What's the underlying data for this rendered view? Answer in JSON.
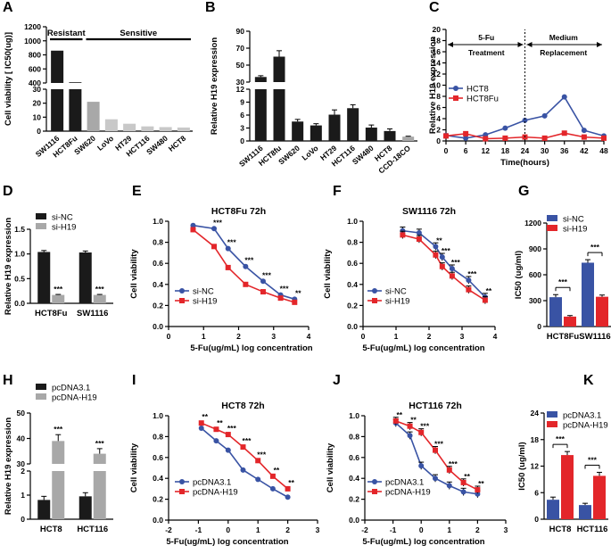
{
  "colors": {
    "blue": "#3953a4",
    "red": "#e3262a",
    "black": "#1a1a1a",
    "gray": "#a8a8a8",
    "light": "#c8c8c8"
  },
  "chart_data": [
    {
      "panel": "A",
      "type": "bar",
      "ylabel": "Cell viability [ IC50(ug)]",
      "categories": [
        "SW1116",
        "HCT8Fu",
        "SW620",
        "LoVo",
        "HT29",
        "HCT116",
        "SW480",
        "HCT8"
      ],
      "values": [
        860,
        410,
        21,
        8.5,
        5.3,
        3.4,
        2.9,
        2.6
      ],
      "groups": [
        {
          "label": "Resistant",
          "from": 0,
          "to": 1
        },
        {
          "label": "Sensitive",
          "from": 2,
          "to": 7
        }
      ],
      "y_lower_ticks": [
        "0",
        "10",
        "20",
        "30"
      ],
      "y_upper_ticks": [
        "400",
        "600",
        "800",
        "1000",
        "1200"
      ]
    },
    {
      "panel": "B",
      "type": "bar",
      "ylabel": "Relative H19 expression",
      "categories": [
        "SW1116",
        "HCT8fu",
        "SW620",
        "LoVo",
        "HT29",
        "HCT116",
        "SW480",
        "HCT8",
        "CCD-18CO"
      ],
      "values": [
        36,
        60,
        4.5,
        3.6,
        6.1,
        7.6,
        3.1,
        2.3,
        1
      ],
      "errors": [
        1.5,
        7,
        0.5,
        0.4,
        1.1,
        0.8,
        0.6,
        0.5,
        0.1
      ],
      "y_lower_ticks": [
        "0",
        "3",
        "6",
        "9",
        "12"
      ],
      "y_upper_ticks": [
        "30",
        "50",
        "70",
        "90"
      ]
    },
    {
      "panel": "C",
      "type": "line",
      "xlabel": "Time(hours)",
      "ylabel": "Relative H19 expression",
      "x": [
        0,
        6,
        12,
        18,
        24,
        30,
        36,
        42,
        48
      ],
      "xticks": [
        "0",
        "6",
        "12",
        "18",
        "24",
        "30",
        "36",
        "42",
        "48"
      ],
      "yticks": [
        "0",
        "2",
        "4",
        "6",
        "8",
        "10",
        "12",
        "14",
        "16",
        "18",
        "20"
      ],
      "xlim": [
        0,
        48
      ],
      "ylim": [
        0,
        20
      ],
      "series": [
        {
          "name": "HCT8",
          "values": [
            1.0,
            0.5,
            1.1,
            2.3,
            3.7,
            4.5,
            7.9,
            1.9,
            0.9
          ]
        },
        {
          "name": "HCT8Fu",
          "values": [
            0.9,
            1.3,
            0.4,
            0.5,
            0.7,
            0.5,
            1.4,
            0.7,
            0.5
          ]
        }
      ],
      "phase_labels": {
        "left_1": "5-Fu",
        "left_2": "Treatment",
        "right_1": "Medium",
        "right_2": "Replacement"
      }
    },
    {
      "panel": "D",
      "type": "bar",
      "ylabel": "Relative H19 expression",
      "categories": [
        "HCT8Fu",
        "SW1116"
      ],
      "yticks": [
        "0.0",
        "0.5",
        "1.0",
        "1.5"
      ],
      "ylim": [
        0,
        1.5
      ],
      "series": [
        {
          "name": "si-NC",
          "values": [
            1.04,
            1.03
          ],
          "errors": [
            0.03,
            0.03
          ]
        },
        {
          "name": "si-H19",
          "values": [
            0.17,
            0.17
          ],
          "errors": [
            0.01,
            0.01
          ]
        }
      ],
      "annotations": [
        "***",
        "***"
      ]
    },
    {
      "panel": "E",
      "type": "line",
      "title": "HCT8Fu 72h",
      "xlabel": "5-Fu(ug/mL)  log concentration",
      "ylabel": "Cell viability",
      "xticks": [
        "0",
        "1",
        "2",
        "3",
        "4"
      ],
      "yticks": [
        "0.0",
        "0.2",
        "0.4",
        "0.6",
        "0.8",
        "1.0"
      ],
      "xlim": [
        0,
        4
      ],
      "ylim": [
        0,
        1.0
      ],
      "x": [
        0.7,
        1.3,
        1.7,
        2.2,
        2.7,
        3.2,
        3.6
      ],
      "series": [
        {
          "name": "si-NC",
          "values": [
            0.96,
            0.93,
            0.74,
            0.57,
            0.43,
            0.3,
            0.26
          ]
        },
        {
          "name": "si-H19",
          "values": [
            0.92,
            0.76,
            0.56,
            0.4,
            0.33,
            0.27,
            0.23
          ]
        }
      ],
      "annotations": [
        "***",
        "***",
        "***",
        "***",
        "***",
        "**"
      ]
    },
    {
      "panel": "F",
      "type": "line",
      "title": "SW1116 72h",
      "xlabel": "5-Fu(ug/mL)  log concentration",
      "ylabel": "Cell viability",
      "xticks": [
        "0",
        "1",
        "2",
        "3",
        "4"
      ],
      "yticks": [
        "0.0",
        "0.2",
        "0.4",
        "0.6",
        "0.8",
        "1.0"
      ],
      "xlim": [
        0,
        4
      ],
      "ylim": [
        0,
        1.0
      ],
      "x": [
        1.2,
        1.7,
        2.2,
        2.4,
        2.7,
        3.2,
        3.7
      ],
      "series": [
        {
          "name": "si-NC",
          "values": [
            0.91,
            0.89,
            0.76,
            0.66,
            0.55,
            0.44,
            0.28
          ]
        },
        {
          "name": "si-H19",
          "values": [
            0.87,
            0.83,
            0.68,
            0.57,
            0.48,
            0.35,
            0.25
          ]
        }
      ],
      "annotations": [
        "**",
        "***",
        "***",
        "***",
        "**"
      ]
    },
    {
      "panel": "G",
      "type": "bar",
      "ylabel": "IC50 (ug/ml)",
      "categories": [
        "HCT8Fu",
        "SW1116"
      ],
      "yticks": [
        "0",
        "300",
        "600",
        "900",
        "1200"
      ],
      "ylim": [
        0,
        1200
      ],
      "series": [
        {
          "name": "si-NC",
          "values": [
            340,
            740
          ],
          "errors": [
            30,
            35
          ]
        },
        {
          "name": "si-H19",
          "values": [
            115,
            345
          ],
          "errors": [
            12,
            20
          ]
        }
      ],
      "annotations": [
        "***",
        "***"
      ]
    },
    {
      "panel": "H",
      "type": "bar",
      "ylabel": "Relative H19 expression",
      "categories": [
        "HCT8",
        "HCT116"
      ],
      "y_lower_ticks": [
        "0",
        "1",
        "2"
      ],
      "y_upper_ticks": [
        "30",
        "40",
        "50"
      ],
      "series": [
        {
          "name": "pcDNA3.1",
          "values": [
            0.8,
            0.95
          ],
          "errors": [
            0.15,
            0.15
          ]
        },
        {
          "name": "pcDNA-H19",
          "values": [
            39,
            34
          ],
          "errors": [
            2.5,
            2
          ]
        }
      ],
      "annotations": [
        "***",
        "***"
      ]
    },
    {
      "panel": "I",
      "type": "line",
      "title": "HCT8 72h",
      "xlabel": "5-Fu(ug/mL)  log concentration",
      "ylabel": "Cell viability",
      "xticks": [
        "-2",
        "-1",
        "0",
        "1",
        "2",
        "3"
      ],
      "yticks": [
        "0.0",
        "0.2",
        "0.4",
        "0.6",
        "0.8",
        "1.0"
      ],
      "xlim": [
        -2,
        3
      ],
      "ylim": [
        0,
        1.0
      ],
      "x": [
        -0.9,
        -0.4,
        0.0,
        0.5,
        1.0,
        1.5,
        2.0
      ],
      "series": [
        {
          "name": "pcDNA3.1",
          "values": [
            0.88,
            0.76,
            0.67,
            0.48,
            0.39,
            0.3,
            0.22
          ]
        },
        {
          "name": "pcDNA-H19",
          "values": [
            0.93,
            0.87,
            0.82,
            0.7,
            0.57,
            0.42,
            0.3
          ]
        }
      ],
      "annotations": [
        "**",
        "**",
        "***",
        "***",
        "***",
        "**",
        "**"
      ]
    },
    {
      "panel": "J",
      "type": "line",
      "title": "HCT116 72h",
      "xlabel": "5-Fu(ug/mL)  log concentration",
      "ylabel": "Cell viability",
      "xticks": [
        "-2",
        "-1",
        "0",
        "1",
        "2",
        "3"
      ],
      "yticks": [
        "0.0",
        "0.2",
        "0.4",
        "0.6",
        "0.8",
        "1.0"
      ],
      "xlim": [
        -2,
        3
      ],
      "ylim": [
        0,
        1.0
      ],
      "x": [
        -0.9,
        -0.4,
        0.0,
        0.5,
        1.0,
        1.5,
        2.0
      ],
      "series": [
        {
          "name": "pcDNA3.1",
          "values": [
            0.93,
            0.81,
            0.52,
            0.4,
            0.33,
            0.27,
            0.25
          ]
        },
        {
          "name": "pcDNA-H19",
          "values": [
            0.95,
            0.9,
            0.84,
            0.67,
            0.48,
            0.36,
            0.29
          ]
        }
      ],
      "annotations": [
        "**",
        "**",
        "***",
        "***",
        "***",
        "**",
        "**"
      ]
    },
    {
      "panel": "K",
      "type": "bar",
      "ylabel": "IC50 (ug/ml)",
      "categories": [
        "HCT8",
        "HCT116"
      ],
      "yticks": [
        "0",
        "6",
        "12",
        "18",
        "24"
      ],
      "ylim": [
        0,
        24
      ],
      "series": [
        {
          "name": "pcDNA3.1",
          "values": [
            4.4,
            3.2
          ],
          "errors": [
            0.6,
            0.4
          ]
        },
        {
          "name": "pcDNA-H19",
          "values": [
            14.5,
            9.8
          ],
          "errors": [
            0.8,
            0.8
          ]
        }
      ],
      "annotations": [
        "***",
        "***"
      ]
    }
  ]
}
